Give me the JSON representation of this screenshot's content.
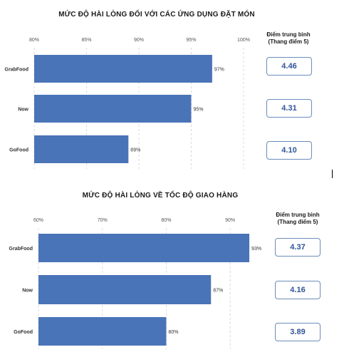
{
  "charts": [
    {
      "title": "MỨC ĐỘ HÀI LÒNG ĐỐI VỚI CÁC ỨNG DỤNG ĐẶT MÓN",
      "avg_header": [
        "Điểm trung bình",
        "(Thang điểm 5)"
      ],
      "scores": [
        "4.46",
        "4.31",
        "4.10"
      ]
    },
    {
      "title": "MỨC ĐỘ HÀI LÒNG VỀ TỐC ĐỘ GIAO HÀNG",
      "avg_header": [
        "Điểm trung bình",
        "(Thang điểm 5)"
      ],
      "scores": [
        "4.37",
        "4.16",
        "3.89"
      ]
    }
  ],
  "chart_data": [
    {
      "type": "bar",
      "orientation": "horizontal",
      "title": "MỨC ĐỘ HÀI LÒNG ĐỐI VỚI CÁC ỨNG DỤNG ĐẶT MÓN",
      "categories": [
        "GrabFood",
        "Now",
        "GoFood"
      ],
      "values": [
        97,
        95,
        89
      ],
      "value_labels": [
        "97%",
        "95%",
        "89%"
      ],
      "xlim": [
        80,
        100
      ],
      "ticks": [
        80,
        85,
        90,
        95,
        100
      ],
      "tick_labels": [
        "80%",
        "85%",
        "90%",
        "95%",
        "100%"
      ],
      "axis_position": "top",
      "grid": true,
      "bar_color": "#4a74b8"
    },
    {
      "type": "bar",
      "orientation": "horizontal",
      "title": "MỨC ĐỘ HÀI LÒNG VỀ TỐC ĐỘ GIAO HÀNG",
      "categories": [
        "GrabFood",
        "Now",
        "GoFood"
      ],
      "values": [
        93,
        87,
        80
      ],
      "value_labels": [
        "93%",
        "87%",
        "80%"
      ],
      "xlim": [
        60,
        95
      ],
      "ticks": [
        60,
        70,
        80,
        90
      ],
      "tick_labels": [
        "60%",
        "70%",
        "80%",
        "90%"
      ],
      "axis_position": "top",
      "grid": true,
      "bar_color": "#4a74b8"
    }
  ]
}
